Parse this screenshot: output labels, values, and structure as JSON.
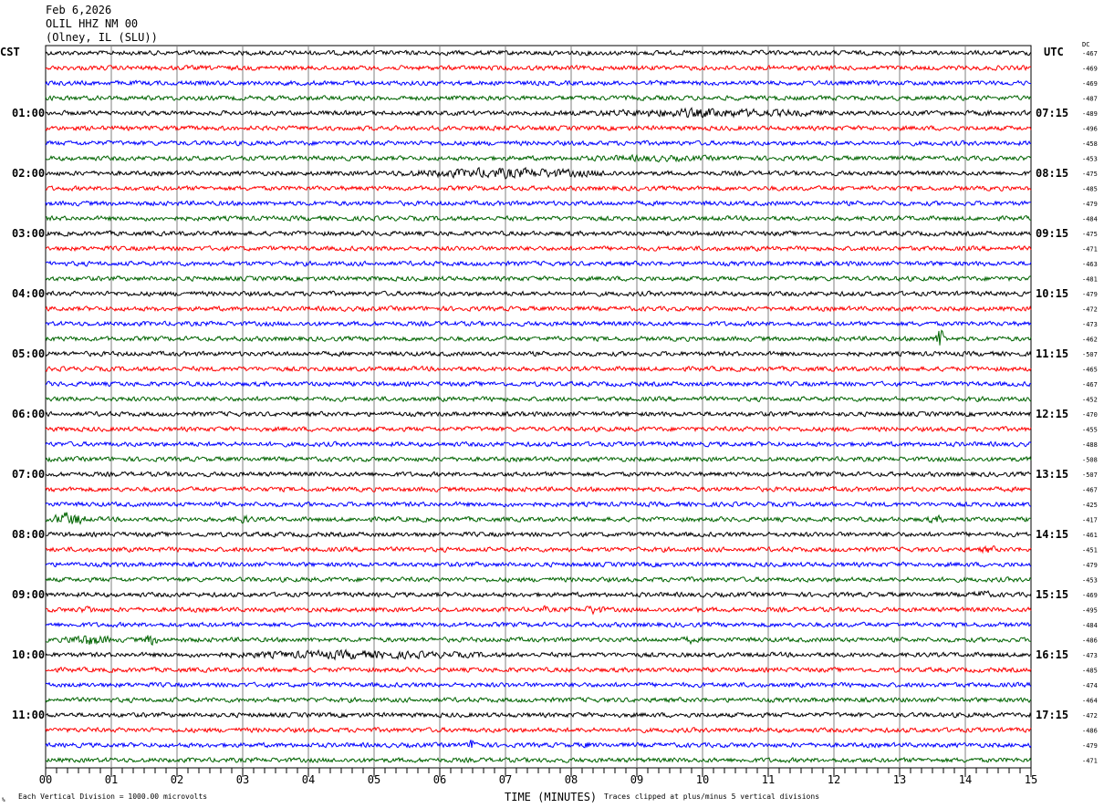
{
  "header": {
    "date": "Feb 6,2026",
    "station": "OLIL HHZ NM 00",
    "location": "(Olney, IL (SLU))"
  },
  "chart_data": {
    "type": "line",
    "title": "Feb 6,2026 OLIL HHZ NM 00 (Olney, IL (SLU))",
    "xlabel": "TIME (MINUTES)",
    "xlim": [
      0,
      15
    ],
    "x_ticks": [
      "00",
      "01",
      "02",
      "03",
      "04",
      "05",
      "06",
      "07",
      "08",
      "09",
      "10",
      "11",
      "12",
      "13",
      "14",
      "15"
    ],
    "left_axis_title": "CST",
    "right_axis_title": "UTC",
    "dc_title": "DC",
    "left_hour_labels": [
      "01:00",
      "02:00",
      "03:00",
      "04:00",
      "05:00",
      "06:00",
      "07:00",
      "08:00",
      "09:00",
      "10:00",
      "11:00"
    ],
    "right_hour_labels": [
      "07:15",
      "08:15",
      "09:15",
      "10:15",
      "11:15",
      "12:15",
      "13:15",
      "14:15",
      "15:15",
      "16:15",
      "17:15"
    ],
    "traces_per_hour": 4,
    "trace_colors": [
      "#000000",
      "#ff0000",
      "#0000ff",
      "#006400"
    ],
    "dc_offsets": [
      -467,
      -469,
      -469,
      -487,
      -489,
      -496,
      -458,
      -453,
      -475,
      -485,
      -479,
      -484,
      -475,
      -471,
      -463,
      -481,
      -479,
      -472,
      -473,
      -462,
      -507,
      -465,
      -467,
      -452,
      -470,
      -455,
      -488,
      -508,
      -507,
      -467,
      -425,
      -417,
      -461,
      -451,
      -479,
      -453,
      -469,
      -495,
      -484,
      -486,
      -473,
      -485,
      -474,
      -464,
      -472,
      -486,
      -479,
      -471
    ],
    "events": [
      {
        "trace": 4,
        "start": 8.0,
        "end": 12.0,
        "amp": 2.2
      },
      {
        "trace": 4,
        "start": 14.2,
        "end": 14.5,
        "amp": 1.6
      },
      {
        "trace": 7,
        "start": 7.3,
        "end": 11.0,
        "amp": 1.5
      },
      {
        "trace": 8,
        "start": 5.2,
        "end": 8.8,
        "amp": 2.4
      },
      {
        "trace": 19,
        "start": 13.55,
        "end": 13.7,
        "amp": 6.0
      },
      {
        "trace": 31,
        "start": 0.1,
        "end": 0.6,
        "amp": 3.5
      },
      {
        "trace": 31,
        "start": 2.8,
        "end": 3.2,
        "amp": 2.0
      },
      {
        "trace": 31,
        "start": 13.4,
        "end": 13.7,
        "amp": 2.0
      },
      {
        "trace": 33,
        "start": 14.2,
        "end": 14.5,
        "amp": 2.0
      },
      {
        "trace": 36,
        "start": 14.1,
        "end": 14.4,
        "amp": 2.2
      },
      {
        "trace": 37,
        "start": 0.5,
        "end": 0.8,
        "amp": 2.0
      },
      {
        "trace": 37,
        "start": 7.55,
        "end": 7.65,
        "amp": 2.0
      },
      {
        "trace": 37,
        "start": 8.2,
        "end": 8.5,
        "amp": 2.4
      },
      {
        "trace": 37,
        "start": 9.8,
        "end": 9.95,
        "amp": 2.0
      },
      {
        "trace": 39,
        "start": 0.3,
        "end": 1.0,
        "amp": 2.8
      },
      {
        "trace": 39,
        "start": 1.5,
        "end": 1.7,
        "amp": 3.0
      },
      {
        "trace": 39,
        "start": 9.7,
        "end": 9.9,
        "amp": 2.0
      },
      {
        "trace": 40,
        "start": 2.3,
        "end": 7.0,
        "amp": 2.0
      },
      {
        "trace": 46,
        "start": 6.45,
        "end": 6.6,
        "amp": 4.0
      },
      {
        "trace": 46,
        "start": 8.15,
        "end": 8.3,
        "amp": 2.0
      }
    ]
  },
  "footer": {
    "scale_note": "Each Vertical Division = 1000.00 microvolts",
    "clip_note": "Traces clipped at plus/minus 5 vertical divisions",
    "corner_mark": "%"
  }
}
